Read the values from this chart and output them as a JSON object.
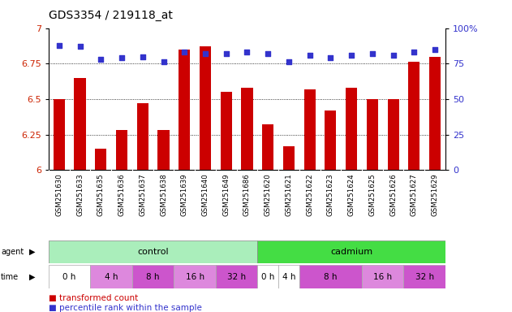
{
  "title": "GDS3354 / 219118_at",
  "samples": [
    "GSM251630",
    "GSM251633",
    "GSM251635",
    "GSM251636",
    "GSM251637",
    "GSM251638",
    "GSM251639",
    "GSM251640",
    "GSM251649",
    "GSM251686",
    "GSM251620",
    "GSM251621",
    "GSM251622",
    "GSM251623",
    "GSM251624",
    "GSM251625",
    "GSM251626",
    "GSM251627",
    "GSM251629"
  ],
  "transformed_count": [
    6.5,
    6.65,
    6.15,
    6.28,
    6.47,
    6.28,
    6.85,
    6.87,
    6.55,
    6.58,
    6.32,
    6.17,
    6.57,
    6.42,
    6.58,
    6.5,
    6.5,
    6.76,
    6.8
  ],
  "percentile_rank": [
    88,
    87,
    78,
    79,
    80,
    76,
    83,
    82,
    82,
    83,
    82,
    76,
    81,
    79,
    81,
    82,
    81,
    83,
    85
  ],
  "ylim_left": [
    6.0,
    7.0
  ],
  "ylim_right": [
    0,
    100
  ],
  "yticks_left": [
    6.0,
    6.25,
    6.5,
    6.75,
    7.0
  ],
  "yticks_right": [
    0,
    25,
    50,
    75,
    100
  ],
  "ytick_labels_left": [
    "6",
    "6.25",
    "6.5",
    "6.75",
    "7"
  ],
  "ytick_labels_right": [
    "0",
    "25",
    "50",
    "75",
    "100%"
  ],
  "bar_color": "#cc0000",
  "dot_color": "#3333cc",
  "agent_groups": [
    {
      "label": "control",
      "start": 0,
      "end": 10,
      "color": "#aaeebb"
    },
    {
      "label": "cadmium",
      "start": 10,
      "end": 19,
      "color": "#44dd44"
    }
  ],
  "time_groups_control": [
    {
      "label": "0 h",
      "start": 0,
      "end": 2,
      "color": "#ffffff"
    },
    {
      "label": "4 h",
      "start": 2,
      "end": 4,
      "color": "#dd88dd"
    },
    {
      "label": "8 h",
      "start": 4,
      "end": 6,
      "color": "#cc55cc"
    },
    {
      "label": "16 h",
      "start": 6,
      "end": 8,
      "color": "#dd88dd"
    },
    {
      "label": "32 h",
      "start": 8,
      "end": 10,
      "color": "#cc55cc"
    }
  ],
  "time_groups_cadmium": [
    {
      "label": "0 h",
      "start": 10,
      "end": 11,
      "color": "#ffffff"
    },
    {
      "label": "4 h",
      "start": 11,
      "end": 12,
      "color": "#ffffff"
    },
    {
      "label": "8 h",
      "start": 12,
      "end": 15,
      "color": "#cc55cc"
    },
    {
      "label": "16 h",
      "start": 15,
      "end": 17,
      "color": "#dd88dd"
    },
    {
      "label": "32 h",
      "start": 17,
      "end": 19,
      "color": "#cc55cc"
    }
  ],
  "left_label_color": "#cc2200",
  "right_label_color": "#3333cc",
  "grid_color": "#000000",
  "spine_color": "#000000",
  "sample_bg_color": "#dddddd",
  "title_fontsize": 10,
  "bar_fontsize": 7,
  "label_fontsize": 7.5,
  "row_label_fontsize": 7,
  "legend_marker_size": 7
}
